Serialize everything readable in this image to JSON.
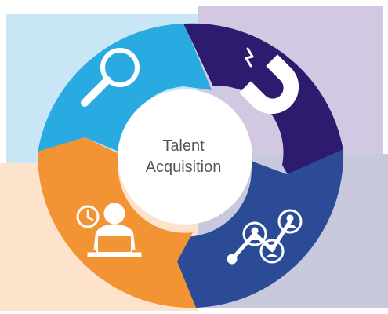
{
  "center": {
    "line1": "Talent",
    "line2": "Acquisition"
  },
  "colors": {
    "quadrant_bg_top_left": "#c8e6f5",
    "quadrant_bg_top_right": "#d3c8e2",
    "quadrant_bg_bottom_left": "#fde3cc",
    "quadrant_bg_bottom_right": "#c9c9de",
    "segment_search": "#29abe2",
    "segment_attract": "#2e1a6e",
    "segment_network": "#2b4b97",
    "segment_candidate": "#f39434",
    "center_fill": "#ffffff",
    "icon_color": "#ffffff"
  },
  "segments": [
    {
      "name": "search",
      "icon": "magnifier-icon"
    },
    {
      "name": "attract",
      "icon": "magnet-icon"
    },
    {
      "name": "network",
      "icon": "network-people-icon"
    },
    {
      "name": "candidate",
      "icon": "person-laptop-clock-icon"
    }
  ]
}
